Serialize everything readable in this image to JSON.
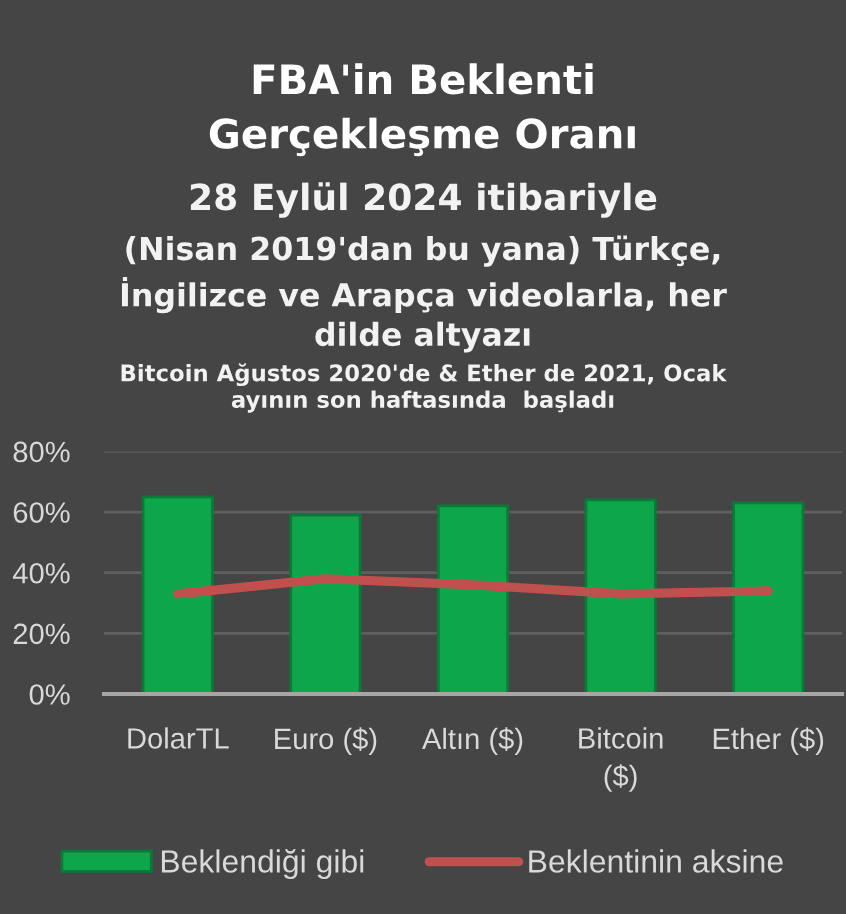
{
  "chart_data": {
    "type": "bar",
    "title": "FBA'in Beklenti\nGerçekleşme Oranı",
    "subtitle": "28 Eylül 2024 itibariyle",
    "annotations": [
      "(Nisan 2019'dan bu yana) Türkçe,\nİngilizce ve Arapça videolarla, her\ndilde altyazı",
      "Bitcoin Ağustos 2020'de & Ether de 2021, Ocak\nayının son haftasında  başladı"
    ],
    "categories": [
      "DolarTL",
      "Euro ($)",
      "Altın ($)",
      "Bitcoin\n($)",
      "Ether ($)"
    ],
    "series": [
      {
        "name": "Beklendiği gibi",
        "color": "#0ea64b",
        "values": [
          65,
          59,
          62,
          64,
          63
        ]
      },
      {
        "name": "Beklentinin aksine",
        "type": "line",
        "color": "#c0504d",
        "values": [
          33,
          38,
          36,
          33,
          34
        ]
      }
    ],
    "ylim": [
      0,
      80
    ],
    "yticks": [
      {
        "value": 0,
        "label": "0%"
      },
      {
        "value": 20,
        "label": "20%"
      },
      {
        "value": 40,
        "label": "40%"
      },
      {
        "value": 60,
        "label": "60%"
      },
      {
        "value": 80,
        "label": "80%"
      }
    ],
    "grid": "y",
    "legend": "bottom"
  }
}
